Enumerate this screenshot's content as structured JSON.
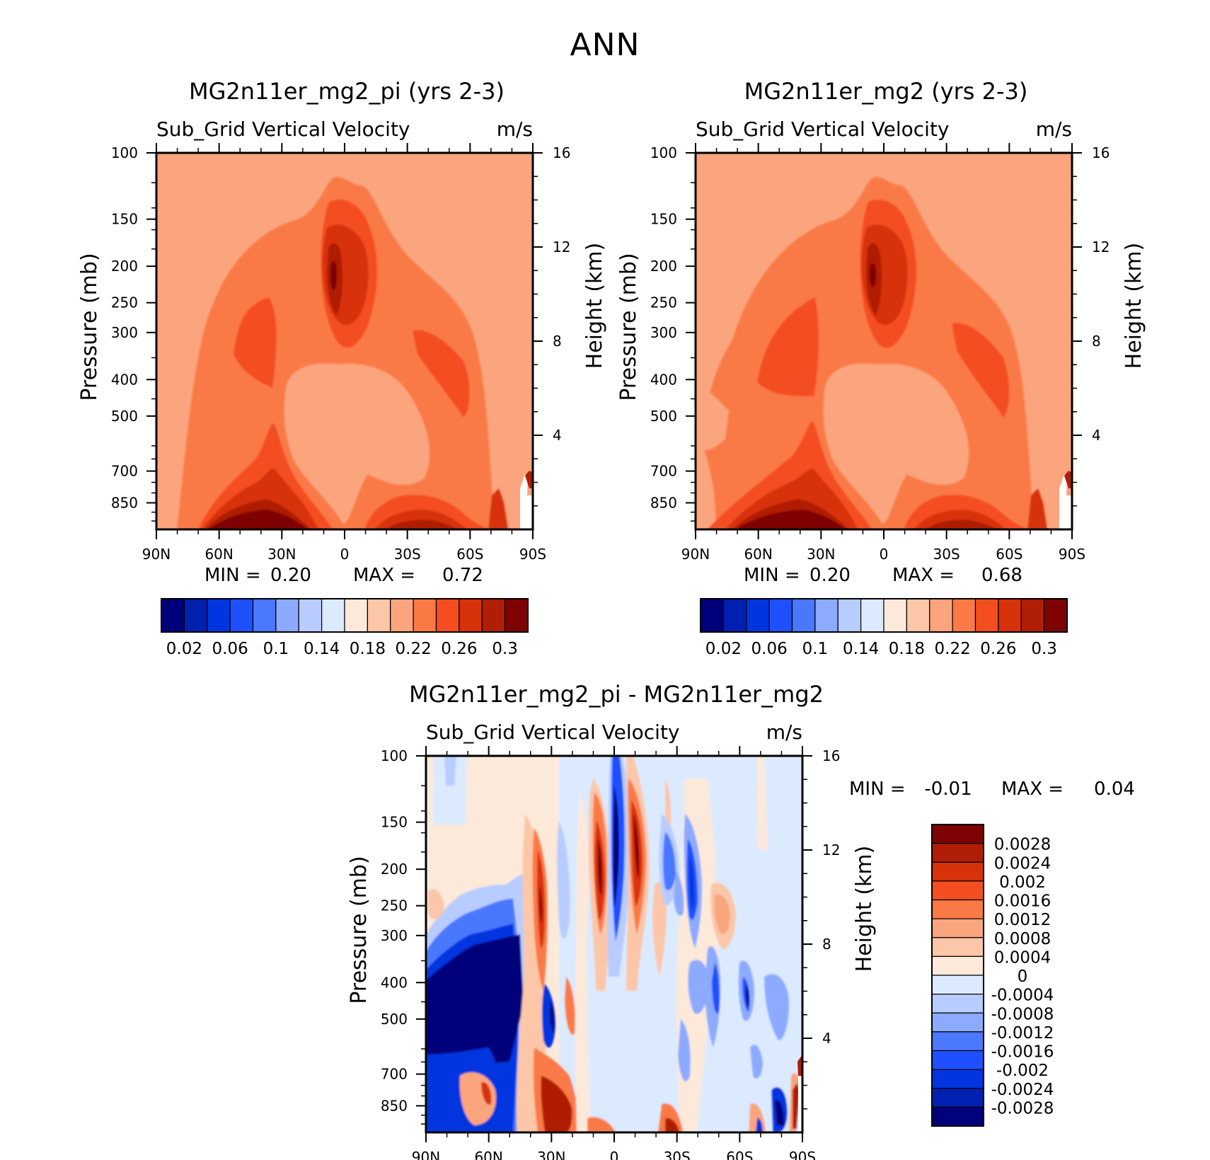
{
  "title": "ANN",
  "pressure_ticks": [
    "100",
    "150",
    "200",
    "250",
    "300",
    "400",
    "500",
    "700",
    "850"
  ],
  "height_ticks": [
    "16",
    "12",
    "8",
    "4"
  ],
  "lat_ticks": [
    "90N",
    "60N",
    "30N",
    "0",
    "30S",
    "60S",
    "90S"
  ],
  "y_label_left": "Pressure (mb)",
  "y_label_right": "Height (km)",
  "panels": [
    {
      "title": "MG2n11er_mg2_pi (yrs 2-3)",
      "subtitle": "Sub_Grid Vertical Velocity",
      "units": "m/s",
      "min_label": "MIN =",
      "min_value": "0.20",
      "max_label": "MAX =",
      "max_value": "0.72",
      "colorbar_labels": [
        "0.02",
        "0.06",
        "0.1",
        "0.14",
        "0.18",
        "0.22",
        "0.26",
        "0.3"
      ]
    },
    {
      "title": "MG2n11er_mg2 (yrs 2-3)",
      "subtitle": "Sub_Grid Vertical Velocity",
      "units": "m/s",
      "min_label": "MIN =",
      "min_value": "0.20",
      "max_label": "MAX =",
      "max_value": "0.68",
      "colorbar_labels": [
        "0.02",
        "0.06",
        "0.1",
        "0.14",
        "0.18",
        "0.22",
        "0.26",
        "0.3"
      ]
    },
    {
      "title": "MG2n11er_mg2_pi - MG2n11er_mg2",
      "subtitle": "Sub_Grid Vertical Velocity",
      "units": "m/s",
      "min_label": "MIN =",
      "min_value": "-0.01",
      "max_label": "MAX =",
      "max_value": "0.04",
      "colorbar_labels": [
        "0.0028",
        "0.0024",
        "0.002",
        "0.0016",
        "0.0012",
        "0.0008",
        "0.0004",
        "0",
        "-0.0004",
        "-0.0008",
        "-0.0012",
        "-0.0016",
        "-0.002",
        "-0.0024",
        "-0.0028"
      ]
    }
  ],
  "colors": {
    "abs_scale": [
      "#00007a",
      "#0020b0",
      "#0035e0",
      "#1e50ff",
      "#4a78ff",
      "#8caaff",
      "#b8ccff",
      "#dceaff",
      "#fde9da",
      "#fcc6a8",
      "#fba57e",
      "#fa7a46",
      "#f44e20",
      "#d8320a",
      "#b01e06",
      "#7e0303"
    ],
    "diff_scale": [
      "#7e0303",
      "#b01e06",
      "#d8320a",
      "#f44e20",
      "#fa7a46",
      "#fba57e",
      "#fcc6a8",
      "#fde9da",
      "#dceaff",
      "#b8ccff",
      "#8caaff",
      "#4a78ff",
      "#1e50ff",
      "#0035e0",
      "#0020b0",
      "#00007a"
    ]
  },
  "chart_data": [
    {
      "type": "heatmap",
      "title": "MG2n11er_mg2_pi (yrs 2-3)",
      "x_range": [
        90,
        -90
      ],
      "y_range_mb": [
        1000,
        100
      ],
      "levels": [
        0.02,
        0.04,
        0.06,
        0.08,
        0.1,
        0.12,
        0.14,
        0.16,
        0.18,
        0.2,
        0.22,
        0.24,
        0.26,
        0.28,
        0.3
      ],
      "min": 0.2,
      "max": 0.72,
      "features": [
        {
          "desc": "background",
          "value": 0.23
        },
        {
          "desc": "tropical upper maximum",
          "lat": 5,
          "p": 200,
          "value": 0.3
        },
        {
          "desc": "NH lower maximum",
          "lat": 40,
          "p": 850,
          "value": 0.31
        },
        {
          "desc": "SH lower maximum",
          "lat": -25,
          "p": 850,
          "value": 0.29
        },
        {
          "desc": "mid-troposphere minimum",
          "lat": -15,
          "p": 500,
          "value": 0.22
        }
      ]
    },
    {
      "type": "heatmap",
      "title": "MG2n11er_mg2 (yrs 2-3)",
      "x_range": [
        90,
        -90
      ],
      "y_range_mb": [
        1000,
        100
      ],
      "levels": [
        0.02,
        0.04,
        0.06,
        0.08,
        0.1,
        0.12,
        0.14,
        0.16,
        0.18,
        0.2,
        0.22,
        0.24,
        0.26,
        0.28,
        0.3
      ],
      "min": 0.2,
      "max": 0.68,
      "features": [
        {
          "desc": "background",
          "value": 0.23
        },
        {
          "desc": "tropical upper maximum",
          "lat": 5,
          "p": 200,
          "value": 0.3
        },
        {
          "desc": "NH lower maximum",
          "lat": 40,
          "p": 850,
          "value": 0.31
        },
        {
          "desc": "SH lower maximum",
          "lat": -25,
          "p": 850,
          "value": 0.29
        }
      ]
    },
    {
      "type": "heatmap",
      "title": "MG2n11er_mg2_pi - MG2n11er_mg2",
      "x_range": [
        90,
        -90
      ],
      "y_range_mb": [
        1000,
        100
      ],
      "levels": [
        -0.0028,
        -0.0024,
        -0.002,
        -0.0016,
        -0.0012,
        -0.0008,
        -0.0004,
        0,
        0.0004,
        0.0008,
        0.0012,
        0.0016,
        0.002,
        0.0024,
        0.0028
      ],
      "min": -0.01,
      "max": 0.04,
      "features": [
        {
          "desc": "NH mid-level negative block",
          "lat": 60,
          "p": 500,
          "value": -0.003
        },
        {
          "desc": "positive tower",
          "lat": 5,
          "p": 200,
          "value": 0.003
        },
        {
          "desc": "negative tower",
          "lat": 0,
          "p": 200,
          "value": -0.003
        },
        {
          "desc": "positive tower",
          "lat": -8,
          "p": 200,
          "value": 0.003
        }
      ]
    }
  ]
}
